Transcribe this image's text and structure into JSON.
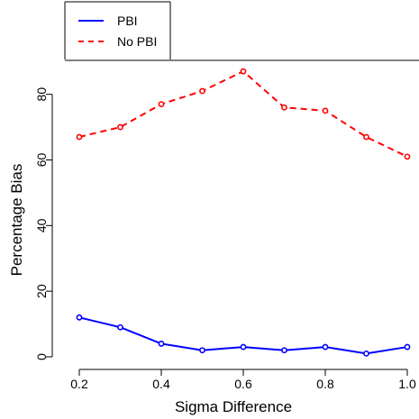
{
  "chart_data": {
    "type": "line",
    "title": "",
    "xlabel": "Sigma Difference",
    "ylabel": "Percentage Bias",
    "x": [
      0.2,
      0.3,
      0.4,
      0.5,
      0.6,
      0.7,
      0.8,
      0.9,
      1.0
    ],
    "xlim": [
      0.2,
      1.0
    ],
    "ylim": [
      0,
      90
    ],
    "xticks": [
      "0.2",
      "0.4",
      "0.6",
      "0.8",
      "1.0"
    ],
    "yticks": [
      "0",
      "20",
      "40",
      "60",
      "80"
    ],
    "grid": false,
    "legend_position": "top-left",
    "series": [
      {
        "name": "PBI",
        "color": "#0000ff",
        "line_style": "solid",
        "marker": "open-circle",
        "values": [
          12,
          9,
          4,
          2,
          3,
          2,
          3,
          1,
          3
        ]
      },
      {
        "name": "No PBI",
        "color": "#ff0000",
        "line_style": "dashed",
        "marker": "open-circle",
        "values": [
          67,
          70,
          77,
          81,
          87,
          76,
          75,
          67,
          61
        ]
      }
    ]
  }
}
